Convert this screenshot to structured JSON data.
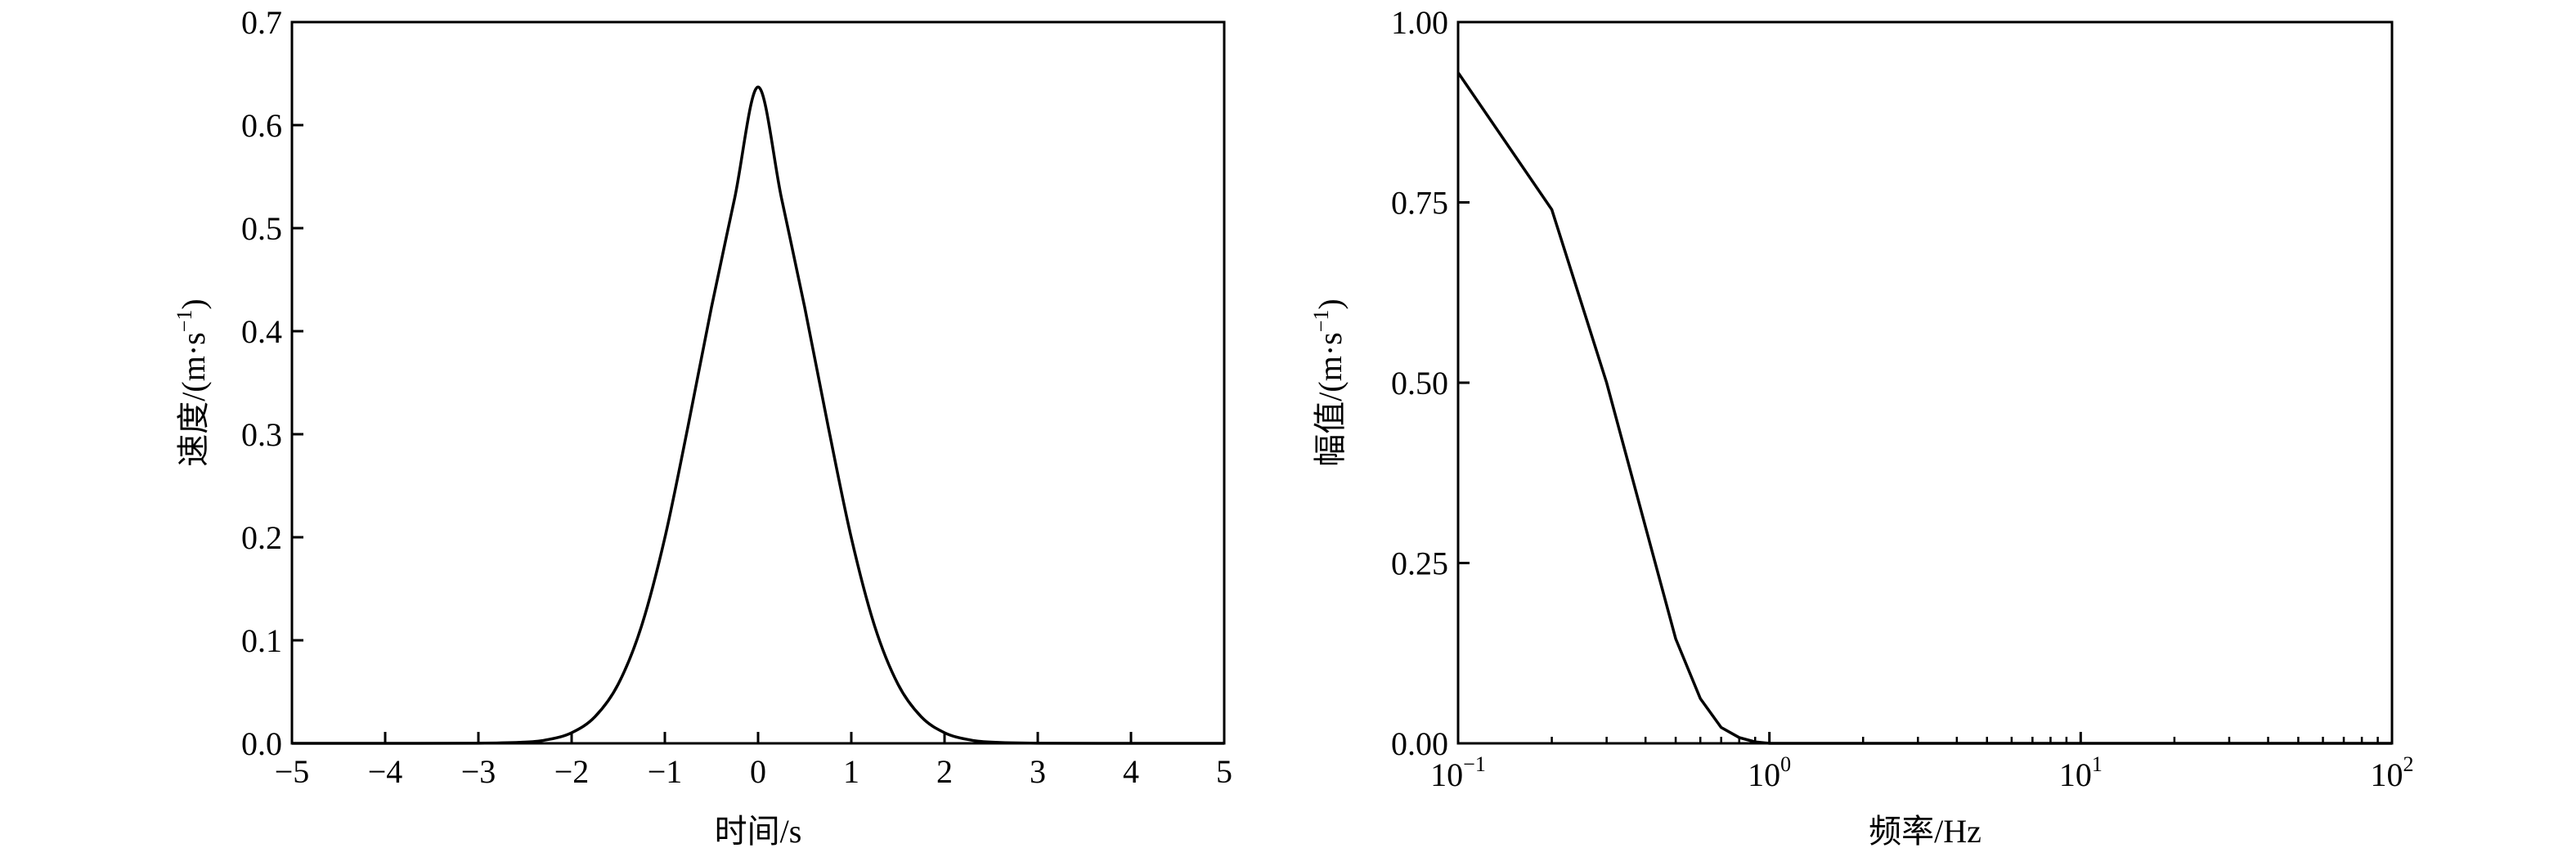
{
  "chart_data": [
    {
      "type": "line",
      "title": "",
      "xlabel": "时间/s",
      "ylabel_main": "速度/(m·s",
      "ylabel_sup": "−1",
      "ylabel_close": ")",
      "xlim": [
        -5,
        5
      ],
      "ylim": [
        0,
        0.7
      ],
      "xticks": [
        -5,
        -4,
        -3,
        -2,
        -1,
        0,
        1,
        2,
        3,
        4,
        5
      ],
      "xtick_labels": [
        "−5",
        "−4",
        "−3",
        "−2",
        "−1",
        "0",
        "1",
        "2",
        "3",
        "4",
        "5"
      ],
      "yticks": [
        0,
        0.1,
        0.2,
        0.3,
        0.4,
        0.5,
        0.6,
        0.7
      ],
      "ytick_labels": [
        "0.0",
        "0.1",
        "0.2",
        "0.3",
        "0.4",
        "0.5",
        "0.6",
        "0.7"
      ],
      "series": [
        {
          "x": [
            -5,
            -4,
            -3,
            -2.5,
            -2.25,
            -2,
            -1.75,
            -1.5,
            -1.25,
            -1,
            -0.75,
            -0.5,
            -0.25,
            0,
            0.25,
            0.5,
            0.75,
            1,
            1.25,
            1.5,
            1.75,
            2,
            2.25,
            2.5,
            3,
            4,
            5
          ],
          "y": [
            0,
            0,
            0.0001,
            0.0012,
            0.0037,
            0.0103,
            0.0258,
            0.0575,
            0.1139,
            0.1995,
            0.3084,
            0.4232,
            0.5296,
            0.637,
            0.5296,
            0.4232,
            0.3084,
            0.1995,
            0.1139,
            0.0575,
            0.0258,
            0.0103,
            0.0037,
            0.0012,
            0.0001,
            0,
            0
          ]
        }
      ]
    },
    {
      "type": "line",
      "title": "",
      "xscale": "log",
      "xlabel": "频率/Hz",
      "ylabel_main": "幅值/(m·s",
      "ylabel_sup": "−1",
      "ylabel_close": ")",
      "xlim": [
        0.1,
        100
      ],
      "ylim": [
        0,
        1
      ],
      "xticks_major": [
        0.1,
        1,
        10,
        100
      ],
      "xtick_label_exponents": [
        "−1",
        "0",
        "1",
        "2"
      ],
      "xtick_label_base": "10",
      "yticks": [
        0,
        0.25,
        0.5,
        0.75,
        1
      ],
      "ytick_labels": [
        "0.00",
        "0.25",
        "0.50",
        "0.75",
        "1.00"
      ],
      "series": [
        {
          "x": [
            0.1,
            0.2,
            0.3,
            0.4,
            0.5,
            0.6,
            0.7,
            0.8,
            0.9,
            1,
            10,
            100
          ],
          "y": [
            0.93,
            0.74,
            0.5,
            0.3,
            0.145,
            0.062,
            0.022,
            0.008,
            0.002,
            0,
            0,
            0
          ]
        }
      ]
    }
  ]
}
